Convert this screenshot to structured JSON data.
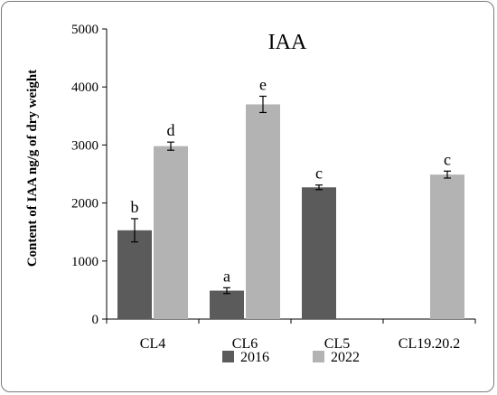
{
  "chart_data": {
    "type": "bar",
    "title": "IAA",
    "xlabel": "",
    "ylabel": "Content of IAA ng/g of dry weight",
    "ylim": [
      0,
      5000
    ],
    "yticks": [
      0,
      1000,
      2000,
      3000,
      4000,
      5000
    ],
    "categories": [
      "CL4",
      "CL6",
      "CL5",
      "CL19.20.2"
    ],
    "series": [
      {
        "name": "2016",
        "color": "#5b5b5b",
        "values": [
          1530,
          490,
          2270,
          null
        ],
        "errors": [
          200,
          50,
          40,
          null
        ],
        "letters": [
          "b",
          "a",
          "c",
          ""
        ]
      },
      {
        "name": "2022",
        "color": "#b3b3b3",
        "values": [
          2980,
          3700,
          null,
          2490
        ],
        "errors": [
          70,
          140,
          null,
          60
        ],
        "letters": [
          "d",
          "e",
          "",
          "c"
        ]
      }
    ],
    "grid": false,
    "legend_position": "bottom"
  }
}
